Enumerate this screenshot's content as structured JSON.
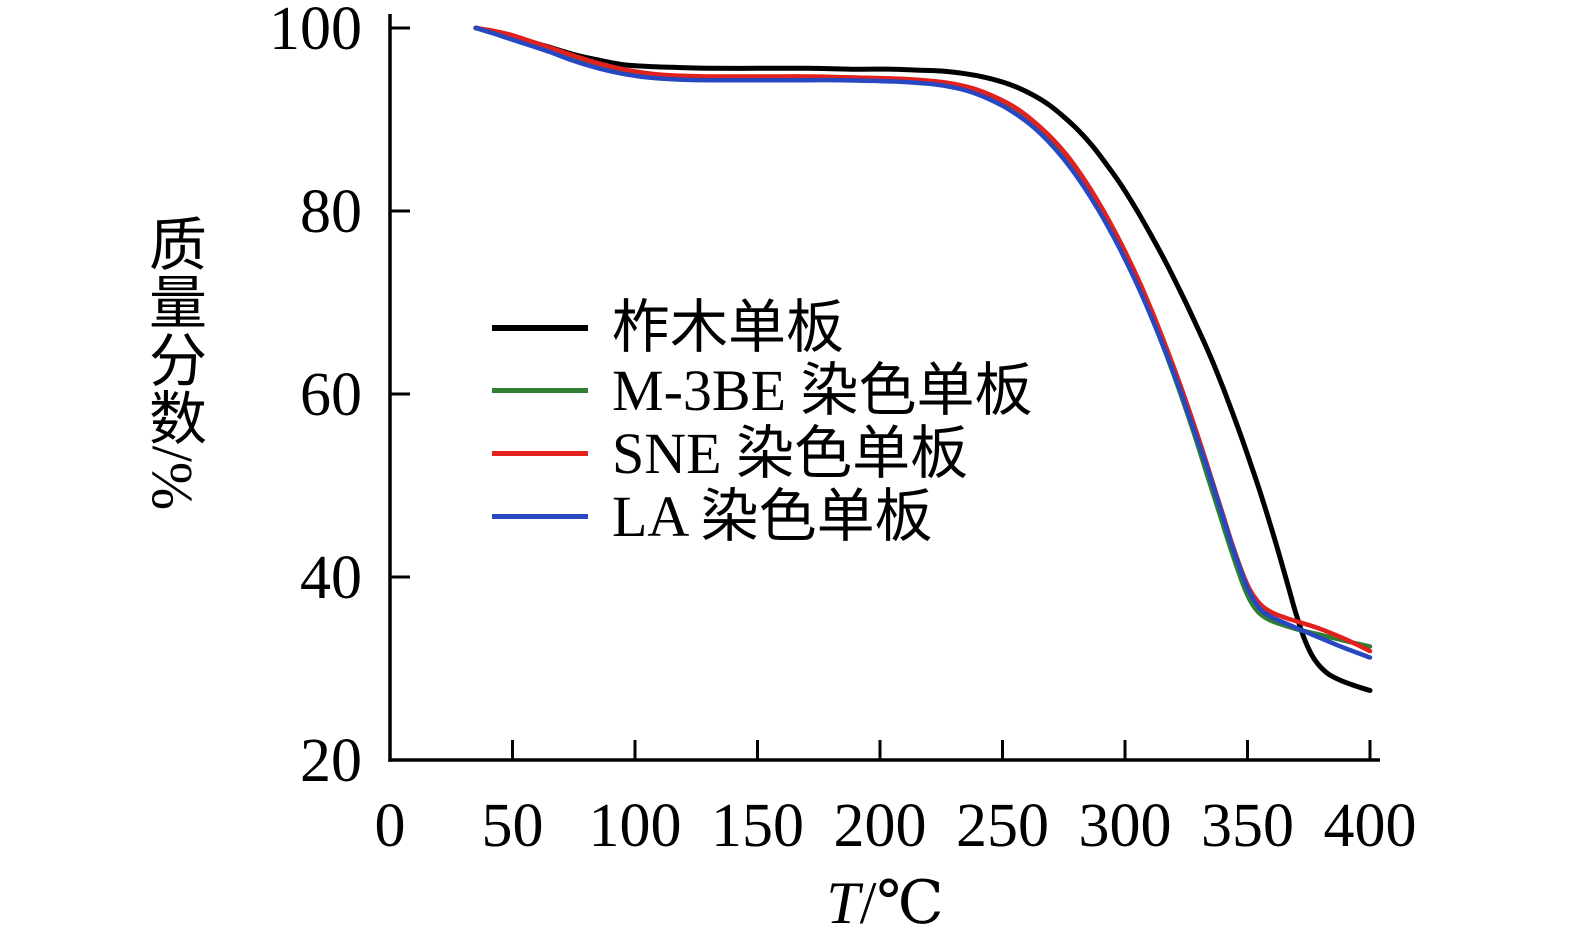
{
  "chart_data": {
    "type": "line",
    "xlabel": "T/℃",
    "xlabel_parts": {
      "italic": "T",
      "rest": "/℃"
    },
    "ylabel": "质量分数/%",
    "xlim": [
      0,
      400
    ],
    "ylim": [
      20,
      100
    ],
    "xticks": [
      0,
      50,
      100,
      150,
      200,
      250,
      300,
      350,
      400
    ],
    "yticks": [
      20,
      40,
      60,
      80,
      100
    ],
    "grid": false,
    "legend_position": "center-left-inside",
    "series": [
      {
        "name": "柞木单板",
        "color": "#000000",
        "points": [
          [
            35,
            100
          ],
          [
            40,
            99.7
          ],
          [
            48,
            99.2
          ],
          [
            56,
            98.6
          ],
          [
            65,
            97.9
          ],
          [
            75,
            97.1
          ],
          [
            85,
            96.5
          ],
          [
            95,
            96.0
          ],
          [
            105,
            95.8
          ],
          [
            115,
            95.7
          ],
          [
            130,
            95.6
          ],
          [
            150,
            95.6
          ],
          [
            170,
            95.6
          ],
          [
            190,
            95.5
          ],
          [
            205,
            95.5
          ],
          [
            215,
            95.4
          ],
          [
            225,
            95.3
          ],
          [
            235,
            95.0
          ],
          [
            243,
            94.6
          ],
          [
            250,
            94.1
          ],
          [
            257,
            93.4
          ],
          [
            263,
            92.6
          ],
          [
            269,
            91.6
          ],
          [
            275,
            90.3
          ],
          [
            281,
            88.8
          ],
          [
            287,
            87.0
          ],
          [
            293,
            84.9
          ],
          [
            299,
            82.6
          ],
          [
            305,
            80.0
          ],
          [
            311,
            77.2
          ],
          [
            317,
            74.2
          ],
          [
            323,
            71.0
          ],
          [
            329,
            67.6
          ],
          [
            335,
            64.0
          ],
          [
            341,
            60.0
          ],
          [
            346,
            56.4
          ],
          [
            351,
            52.6
          ],
          [
            355,
            49.4
          ],
          [
            359,
            46.0
          ],
          [
            363,
            42.4
          ],
          [
            367,
            38.6
          ],
          [
            370,
            35.8
          ],
          [
            373,
            33.4
          ],
          [
            376,
            31.6
          ],
          [
            379,
            30.4
          ],
          [
            383,
            29.4
          ],
          [
            388,
            28.7
          ],
          [
            394,
            28.1
          ],
          [
            400,
            27.6
          ]
        ]
      },
      {
        "name": "M-3BE 染色单板",
        "color": "#2f7e32",
        "points": [
          [
            35,
            100
          ],
          [
            40,
            99.6
          ],
          [
            48,
            99.0
          ],
          [
            56,
            98.3
          ],
          [
            65,
            97.5
          ],
          [
            75,
            96.6
          ],
          [
            85,
            95.9
          ],
          [
            95,
            95.3
          ],
          [
            105,
            94.9
          ],
          [
            115,
            94.7
          ],
          [
            130,
            94.6
          ],
          [
            150,
            94.6
          ],
          [
            170,
            94.6
          ],
          [
            185,
            94.6
          ],
          [
            200,
            94.5
          ],
          [
            210,
            94.4
          ],
          [
            220,
            94.2
          ],
          [
            228,
            93.9
          ],
          [
            236,
            93.4
          ],
          [
            243,
            92.8
          ],
          [
            250,
            91.9
          ],
          [
            256,
            90.9
          ],
          [
            262,
            89.7
          ],
          [
            268,
            88.2
          ],
          [
            274,
            86.4
          ],
          [
            280,
            84.3
          ],
          [
            286,
            81.9
          ],
          [
            292,
            79.1
          ],
          [
            298,
            76.0
          ],
          [
            304,
            72.6
          ],
          [
            310,
            68.9
          ],
          [
            316,
            64.9
          ],
          [
            322,
            60.5
          ],
          [
            328,
            55.8
          ],
          [
            333,
            51.6
          ],
          [
            338,
            47.4
          ],
          [
            342,
            44.0
          ],
          [
            346,
            40.8
          ],
          [
            349,
            38.6
          ],
          [
            352,
            37.0
          ],
          [
            355,
            36.0
          ],
          [
            359,
            35.3
          ],
          [
            364,
            34.8
          ],
          [
            370,
            34.3
          ],
          [
            378,
            33.8
          ],
          [
            387,
            33.2
          ],
          [
            400,
            32.4
          ]
        ]
      },
      {
        "name": "SNE 染色单板",
        "color": "#e3211c",
        "points": [
          [
            35,
            100
          ],
          [
            42,
            99.7
          ],
          [
            50,
            99.2
          ],
          [
            58,
            98.5
          ],
          [
            67,
            97.7
          ],
          [
            77,
            96.8
          ],
          [
            87,
            96.0
          ],
          [
            97,
            95.4
          ],
          [
            107,
            95.0
          ],
          [
            117,
            94.8
          ],
          [
            132,
            94.7
          ],
          [
            152,
            94.7
          ],
          [
            172,
            94.7
          ],
          [
            187,
            94.6
          ],
          [
            202,
            94.5
          ],
          [
            212,
            94.4
          ],
          [
            222,
            94.2
          ],
          [
            230,
            93.9
          ],
          [
            238,
            93.4
          ],
          [
            245,
            92.7
          ],
          [
            252,
            91.8
          ],
          [
            258,
            90.8
          ],
          [
            264,
            89.5
          ],
          [
            270,
            88.0
          ],
          [
            276,
            86.2
          ],
          [
            282,
            84.0
          ],
          [
            288,
            81.5
          ],
          [
            294,
            78.7
          ],
          [
            300,
            75.6
          ],
          [
            306,
            72.2
          ],
          [
            312,
            68.4
          ],
          [
            318,
            64.3
          ],
          [
            324,
            59.9
          ],
          [
            330,
            55.2
          ],
          [
            335,
            51.0
          ],
          [
            340,
            46.8
          ],
          [
            344,
            43.4
          ],
          [
            348,
            40.4
          ],
          [
            351,
            38.6
          ],
          [
            354,
            37.4
          ],
          [
            357,
            36.6
          ],
          [
            361,
            36.0
          ],
          [
            366,
            35.5
          ],
          [
            372,
            35.0
          ],
          [
            380,
            34.3
          ],
          [
            390,
            33.2
          ],
          [
            400,
            31.9
          ]
        ]
      },
      {
        "name": "LA 染色单板",
        "color": "#2748c0",
        "points": [
          [
            35,
            100
          ],
          [
            40,
            99.6
          ],
          [
            48,
            98.9
          ],
          [
            56,
            98.2
          ],
          [
            65,
            97.4
          ],
          [
            75,
            96.4
          ],
          [
            85,
            95.6
          ],
          [
            95,
            95.0
          ],
          [
            105,
            94.6
          ],
          [
            115,
            94.4
          ],
          [
            130,
            94.3
          ],
          [
            150,
            94.3
          ],
          [
            170,
            94.3
          ],
          [
            185,
            94.3
          ],
          [
            200,
            94.2
          ],
          [
            210,
            94.1
          ],
          [
            220,
            93.9
          ],
          [
            228,
            93.6
          ],
          [
            236,
            93.1
          ],
          [
            243,
            92.4
          ],
          [
            250,
            91.5
          ],
          [
            256,
            90.5
          ],
          [
            262,
            89.3
          ],
          [
            268,
            87.8
          ],
          [
            274,
            86.0
          ],
          [
            280,
            83.9
          ],
          [
            286,
            81.5
          ],
          [
            292,
            78.8
          ],
          [
            298,
            75.8
          ],
          [
            304,
            72.5
          ],
          [
            310,
            68.9
          ],
          [
            316,
            65.0
          ],
          [
            322,
            60.8
          ],
          [
            328,
            56.2
          ],
          [
            334,
            51.6
          ],
          [
            339,
            47.4
          ],
          [
            343,
            44.0
          ],
          [
            347,
            40.9
          ],
          [
            350,
            38.8
          ],
          [
            353,
            37.3
          ],
          [
            356,
            36.3
          ],
          [
            360,
            35.6
          ],
          [
            365,
            35.0
          ],
          [
            372,
            34.2
          ],
          [
            380,
            33.3
          ],
          [
            390,
            32.2
          ],
          [
            400,
            31.2
          ]
        ]
      }
    ]
  }
}
